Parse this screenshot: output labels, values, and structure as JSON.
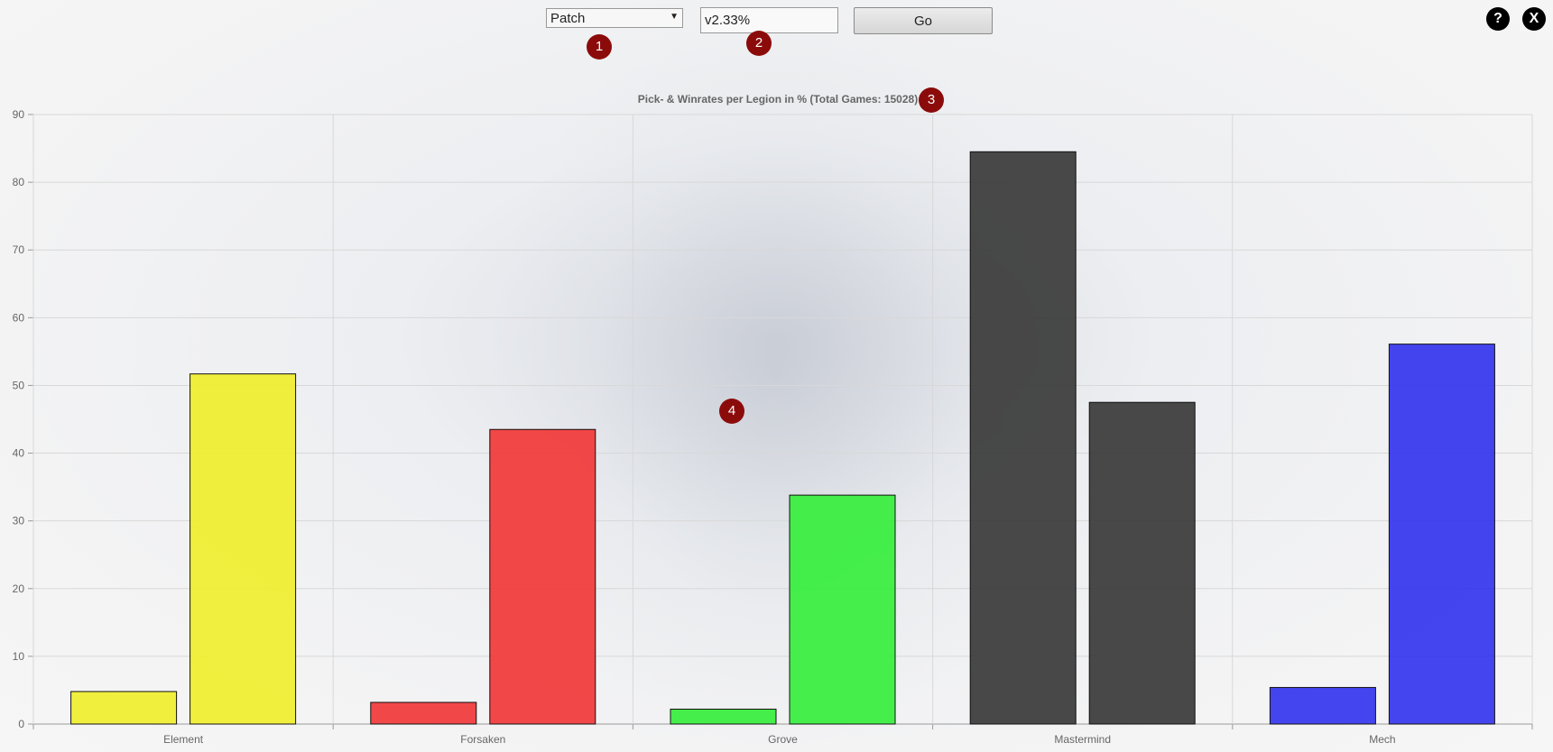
{
  "controls": {
    "filter_select_value": "Patch",
    "filter_input_value": "v2.33%",
    "go_label": "Go",
    "help_label": "?",
    "close_label": "X"
  },
  "markers": [
    "1",
    "2",
    "3",
    "4"
  ],
  "colors": {
    "marker": "#8b0b0b",
    "Element": "#f0ee2e",
    "Forsaken": "#f23838",
    "Grove": "#36ee3c",
    "Mastermind": "#3a3a3a",
    "Mech": "#3535ee"
  },
  "chart_data": {
    "type": "bar",
    "title": "Pick- & Winrates per Legion in % (Total Games: 15028)",
    "categories": [
      "Element",
      "Forsaken",
      "Grove",
      "Mastermind",
      "Mech"
    ],
    "pick_rates": [
      4.8,
      3.2,
      2.2,
      84.5,
      5.4
    ],
    "win_rates": [
      51.7,
      43.5,
      33.8,
      47.5,
      56.1
    ],
    "ylim": [
      0,
      90
    ],
    "yticks": [
      0,
      10,
      20,
      30,
      40,
      50,
      60,
      70,
      80,
      90
    ],
    "grid": true,
    "xlabel": "",
    "ylabel": ""
  }
}
